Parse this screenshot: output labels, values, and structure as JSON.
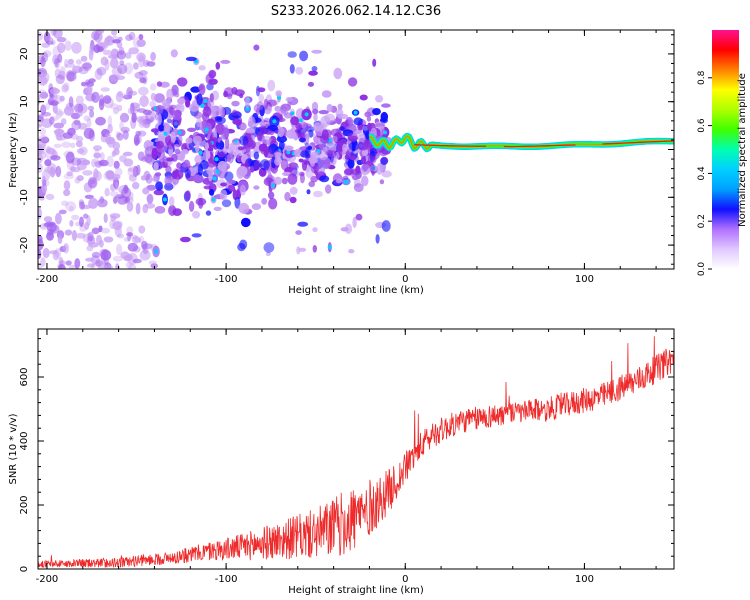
{
  "title": "S233.2026.062.14.12.C36",
  "chart_data": [
    {
      "type": "heatmap",
      "name": "spectrogram",
      "xlabel": "Height of straight line (km)",
      "ylabel": "Frequency (Hz)",
      "xlim": [
        -205,
        150
      ],
      "ylim": [
        -25,
        25
      ],
      "xticks": [
        -200,
        -100,
        0,
        100
      ],
      "xtick_labels": [
        "-200",
        "-100",
        "0",
        "100"
      ],
      "yticks": [
        -20,
        -10,
        0,
        10,
        20
      ],
      "ytick_labels": [
        "-20",
        "-10",
        "0",
        "10",
        "20"
      ],
      "colorbar": {
        "label": "Normalized spectral amplitude",
        "range": [
          0,
          1
        ],
        "ticks": [
          0.0,
          0.2,
          0.4,
          0.6,
          0.8
        ],
        "tick_labels": [
          "0.0",
          "0.2",
          "0.4",
          "0.6",
          "0.8"
        ],
        "colormap": [
          "#ffffff",
          "#c9a0f5",
          "#8a2be2",
          "#1010ff",
          "#00d0ff",
          "#00ff80",
          "#40ff00",
          "#ffff00",
          "#ff8000",
          "#ff0000",
          "#ff1090"
        ]
      },
      "features": {
        "noise_region_x": [
          -205,
          -140
        ],
        "scatter_region_x": [
          -140,
          -20
        ],
        "tone_start_x": -20,
        "tone_freq_hz": [
          [
            -20,
            2
          ],
          [
            -15,
            1.5
          ],
          [
            -10,
            1
          ],
          [
            -5,
            1.5
          ],
          [
            0,
            2.5
          ],
          [
            5,
            1
          ],
          [
            20,
            0.8
          ],
          [
            60,
            0.6
          ],
          [
            100,
            1
          ],
          [
            150,
            1.8
          ]
        ]
      }
    },
    {
      "type": "line",
      "name": "snr",
      "xlabel": "Height of straight line (km)",
      "ylabel": "SNR (10 * v/v)",
      "xlim": [
        -205,
        150
      ],
      "ylim": [
        0,
        750
      ],
      "xticks": [
        -200,
        -100,
        0,
        100
      ],
      "xtick_labels": [
        "-200",
        "-100",
        "0",
        "100"
      ],
      "yticks": [
        0,
        200,
        400,
        600
      ],
      "ytick_labels": [
        "0",
        "200",
        "400",
        "600"
      ],
      "color": "#ee2a2a",
      "trend": {
        "x": [
          -205,
          -160,
          -130,
          -110,
          -90,
          -70,
          -50,
          -35,
          -25,
          -15,
          -5,
          5,
          15,
          30,
          50,
          80,
          110,
          130,
          150
        ],
        "y": [
          15,
          20,
          35,
          55,
          70,
          90,
          110,
          140,
          170,
          210,
          270,
          360,
          420,
          460,
          480,
          500,
          540,
          590,
          660
        ]
      },
      "noise_amplitude": {
        "x": [
          -205,
          -130,
          -100,
          -70,
          -50,
          -30,
          -15,
          0,
          20,
          60,
          100,
          150
        ],
        "y": [
          10,
          20,
          35,
          60,
          80,
          110,
          80,
          50,
          40,
          35,
          40,
          45
        ]
      }
    }
  ]
}
